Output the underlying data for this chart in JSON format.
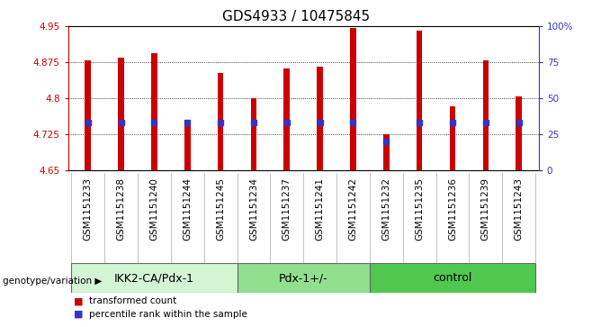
{
  "title": "GDS4933 / 10475845",
  "samples": [
    "GSM1151233",
    "GSM1151238",
    "GSM1151240",
    "GSM1151244",
    "GSM1151245",
    "GSM1151234",
    "GSM1151237",
    "GSM1151241",
    "GSM1151242",
    "GSM1151232",
    "GSM1151235",
    "GSM1151236",
    "GSM1151239",
    "GSM1151243"
  ],
  "transformed_count": [
    4.878,
    4.884,
    4.893,
    4.742,
    4.852,
    4.8,
    4.862,
    4.866,
    4.947,
    4.725,
    4.94,
    4.783,
    4.878,
    4.803
  ],
  "percentile_rank": [
    33,
    33,
    33,
    33,
    33,
    33,
    33,
    33,
    33,
    20,
    33,
    33,
    33,
    33
  ],
  "groups": [
    {
      "label": "IKK2-CA/Pdx-1",
      "start": 0,
      "end": 5,
      "color": "#d4f5d4"
    },
    {
      "label": "Pdx-1+/-",
      "start": 5,
      "end": 9,
      "color": "#90e090"
    },
    {
      "label": "control",
      "start": 9,
      "end": 14,
      "color": "#50c850"
    }
  ],
  "ylim": [
    4.65,
    4.95
  ],
  "yticks": [
    4.65,
    4.725,
    4.8,
    4.875,
    4.95
  ],
  "ytick_labels": [
    "4.65",
    "4.725",
    "4.8",
    "4.875",
    "4.95"
  ],
  "right_yticks": [
    0,
    25,
    50,
    75,
    100
  ],
  "right_ytick_labels": [
    "0",
    "25",
    "50",
    "75",
    "100%"
  ],
  "bar_color": "#cc0000",
  "dot_color": "#3333cc",
  "bar_width": 0.18,
  "plot_bg": "#ffffff",
  "sample_bg": "#d4d4d4",
  "genotype_label": "genotype/variation",
  "legend_entries": [
    "transformed count",
    "percentile rank within the sample"
  ],
  "title_fontsize": 11,
  "tick_fontsize": 7.5,
  "group_label_fontsize": 9,
  "legend_fontsize": 7.5,
  "left_axis_color": "#cc0000",
  "right_axis_color": "#3333cc"
}
